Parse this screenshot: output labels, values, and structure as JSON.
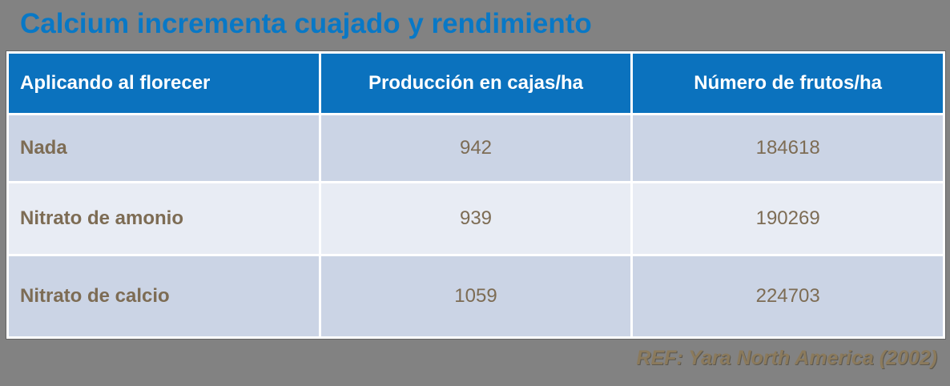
{
  "title": {
    "text": "Calcium incrementa cuajado y rendimiento",
    "color": "#0878c6"
  },
  "chart_data": {
    "type": "table",
    "title": "Calcium incrementa cuajado y rendimiento",
    "columns": [
      "Aplicando al florecer",
      "Producción en cajas/ha",
      "Número de frutos/ha"
    ],
    "rows": [
      [
        "Nada",
        "942",
        "184618"
      ],
      [
        "Nitrato de amonio",
        "939",
        "190269"
      ],
      [
        "Nitrato de calcio",
        "1059",
        "224703"
      ]
    ],
    "source": "REF: Yara North America (2002)"
  },
  "footer": {
    "text": "REF: Yara North America (2002)",
    "color": "#8b7a5c"
  },
  "colors": {
    "background": "#828282",
    "header_bg": "#0b72be",
    "header_text": "#ffffff",
    "row_odd_bg": "#cbd4e5",
    "row_even_bg": "#e8ecf4",
    "cell_text": "#7d6c54",
    "table_border": "#ffffff"
  }
}
